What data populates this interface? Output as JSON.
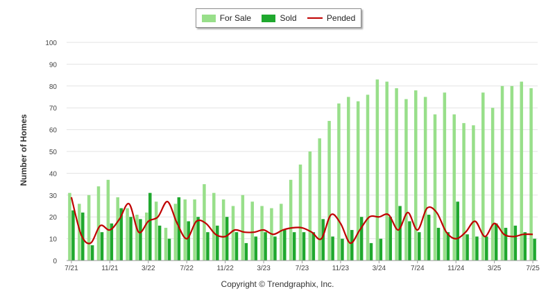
{
  "legend": {
    "for_sale": "For Sale",
    "sold": "Sold",
    "pended": "Pended"
  },
  "colors": {
    "for_sale": "#98df8a",
    "sold": "#1fa82e",
    "pended": "#c00000",
    "grid": "#e3e3e3"
  },
  "footer": {
    "copyright": "Copyright © Trendgraphix, Inc."
  },
  "chart_data": {
    "type": "bar",
    "ylabel": "Number of Homes",
    "ylim": [
      0,
      100
    ],
    "yticks": [
      0,
      10,
      20,
      30,
      40,
      50,
      60,
      70,
      80,
      90,
      100
    ],
    "grid": true,
    "legend_position": "top-center",
    "categories": [
      "7/21",
      "8/21",
      "9/21",
      "10/21",
      "11/21",
      "12/21",
      "1/22",
      "2/22",
      "3/22",
      "4/22",
      "5/22",
      "6/22",
      "7/22",
      "8/22",
      "9/22",
      "10/22",
      "11/22",
      "12/22",
      "1/23",
      "2/23",
      "3/23",
      "4/23",
      "5/23",
      "6/23",
      "7/23",
      "8/23",
      "9/23",
      "10/23",
      "11/23",
      "12/23",
      "1/24",
      "2/24",
      "3/24",
      "4/24",
      "5/24",
      "6/24",
      "7/24",
      "8/24",
      "9/24",
      "10/24",
      "11/24",
      "12/24",
      "1/25",
      "2/25",
      "3/25",
      "4/25",
      "5/25",
      "6/25",
      "7/25"
    ],
    "tick_labels": [
      {
        "index": 0,
        "label": "7/21"
      },
      {
        "index": 4,
        "label": "11/21"
      },
      {
        "index": 8,
        "label": "3/22"
      },
      {
        "index": 12,
        "label": "7/22"
      },
      {
        "index": 16,
        "label": "11/22"
      },
      {
        "index": 20,
        "label": "3/23"
      },
      {
        "index": 24,
        "label": "7/23"
      },
      {
        "index": 28,
        "label": "11/23"
      },
      {
        "index": 32,
        "label": "3/24"
      },
      {
        "index": 36,
        "label": "7/24"
      },
      {
        "index": 40,
        "label": "11/24"
      },
      {
        "index": 44,
        "label": "3/25"
      },
      {
        "index": 48,
        "label": "7/25"
      }
    ],
    "series": [
      {
        "name": "For Sale",
        "kind": "bar",
        "values": [
          31,
          26,
          30,
          34,
          37,
          29,
          24,
          21,
          22,
          27,
          15,
          26,
          28,
          28,
          35,
          31,
          28,
          25,
          30,
          27,
          25,
          24,
          26,
          37,
          44,
          50,
          56,
          64,
          72,
          75,
          73,
          76,
          83,
          82,
          79,
          74,
          78,
          75,
          67,
          77,
          67,
          63,
          62,
          77,
          70,
          80,
          80,
          82,
          79
        ]
      },
      {
        "name": "Sold",
        "kind": "bar",
        "values": [
          23,
          22,
          7,
          13,
          17,
          24,
          20,
          19,
          31,
          16,
          10,
          29,
          18,
          20,
          13,
          16,
          20,
          13,
          8,
          11,
          13,
          11,
          14,
          13,
          13,
          13,
          19,
          11,
          10,
          14,
          20,
          8,
          10,
          20,
          25,
          18,
          13,
          21,
          15,
          13,
          27,
          12,
          11,
          11,
          17,
          15,
          16,
          13,
          10
        ]
      },
      {
        "name": "Pended",
        "kind": "line",
        "values": [
          29,
          12,
          8,
          16,
          14,
          19,
          26,
          13,
          18,
          20,
          27,
          17,
          10,
          18,
          17,
          12,
          11,
          14,
          13,
          13,
          14,
          12,
          14,
          15,
          15,
          13,
          10,
          21,
          17,
          8,
          14,
          20,
          20,
          21,
          14,
          22,
          14,
          24,
          22,
          13,
          10,
          13,
          18,
          11,
          17,
          12,
          11,
          12,
          12
        ]
      }
    ]
  }
}
